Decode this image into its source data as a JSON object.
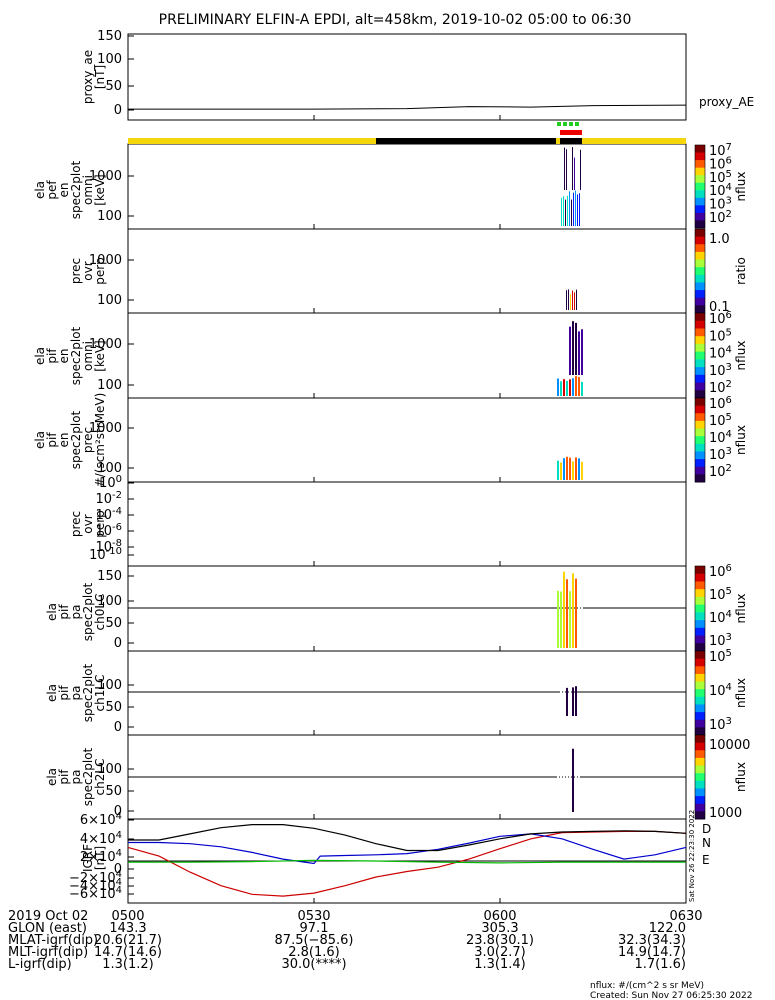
{
  "title": "PRELIMINARY ELFIN-A EPDI, alt=458km, 2019-10-02 05:00 to 06:30",
  "chart_data": [
    {
      "type": "line",
      "ylabel": [
        "proxy_ae",
        "[nT]"
      ],
      "yticks": [
        "150",
        "100",
        "50",
        "0"
      ],
      "ylim": [
        0,
        150
      ],
      "series": [
        {
          "name": "proxy_AE",
          "color": "#000000",
          "x": [
            "05:00",
            "05:15",
            "05:30",
            "05:45",
            "05:55",
            "06:05",
            "06:15",
            "06:30"
          ],
          "values": [
            10,
            10,
            10,
            11,
            15,
            14,
            17,
            18
          ]
        }
      ]
    },
    {
      "type": "heatmap",
      "ylabel": [
        "ela",
        "pef",
        "en",
        "spec2plot",
        "omni",
        "[keV]"
      ],
      "yticks": [
        "1000",
        "100"
      ],
      "colorbar_ticks": [
        "10^7",
        "10^6",
        "10^5",
        "10^4",
        "10^3",
        "10^2"
      ],
      "colorbar_label": "nflux"
    },
    {
      "type": "heatmap",
      "ylabel": [
        "prec",
        "ovr",
        "perp"
      ],
      "yticks": [
        "1000",
        "100"
      ],
      "colorbar_ticks": [
        "1.0",
        "0.1"
      ],
      "colorbar_label": "ratio"
    },
    {
      "type": "heatmap",
      "ylabel": [
        "ela",
        "pif",
        "en",
        "spec2plot",
        "omni",
        "[keV]"
      ],
      "yticks": [
        "1000",
        "100"
      ],
      "colorbar_ticks": [
        "10^6",
        "10^5",
        "10^4",
        "10^3",
        "10^2"
      ],
      "colorbar_label": "nflux"
    },
    {
      "type": "heatmap",
      "ylabel": [
        "ela",
        "pif",
        "en",
        "spec2plot",
        "prec",
        "#/(scm²strMeV)"
      ],
      "yticks": [
        "1000",
        "100"
      ],
      "colorbar_ticks": [
        "10^6",
        "10^5",
        "10^4",
        "10^3",
        "10^2"
      ],
      "colorbar_label": "nflux"
    },
    {
      "type": "heatmap",
      "ylabel": [
        "prec",
        "ovr",
        "perp"
      ],
      "yticks": [
        "10^0",
        "10^-2",
        "10^-4",
        "10^-6",
        "10^-8",
        "10^-10"
      ]
    },
    {
      "type": "heatmap",
      "ylabel": [
        "ela",
        "pif",
        "pa",
        "spec2plot",
        "ch0LC"
      ],
      "yticks": [
        "150",
        "100",
        "50",
        "0"
      ],
      "colorbar_ticks": [
        "10^6",
        "10^5",
        "10^4",
        "10^3"
      ],
      "colorbar_label": "nflux"
    },
    {
      "type": "heatmap",
      "ylabel": [
        "ela",
        "pif",
        "pa",
        "spec2plot",
        "ch1LC"
      ],
      "yticks": [
        "100",
        "50",
        "0"
      ],
      "colorbar_ticks": [
        "10^5",
        "10^4",
        "10^3"
      ],
      "colorbar_label": "nflux"
    },
    {
      "type": "heatmap",
      "ylabel": [
        "ela",
        "pif",
        "pa",
        "spec2plot",
        "ch2LC"
      ],
      "yticks": [
        "100",
        "50",
        "0"
      ],
      "colorbar_ticks": [
        "10000",
        "1000"
      ],
      "colorbar_label": "nflux"
    },
    {
      "type": "line",
      "ylabel": [
        "IGRF",
        "[nT]"
      ],
      "yticks": [
        "6×10^4",
        "4×10^4",
        "2×10^4",
        "0",
        "−2×10^4",
        "−4×10^4",
        "−6×10^4"
      ],
      "ylim": [
        -60000,
        60000
      ],
      "series": [
        {
          "name": "D",
          "color": "#cc0000",
          "x": [
            "05:00",
            "05:05",
            "05:10",
            "05:15",
            "05:20",
            "05:25",
            "05:30",
            "05:35",
            "05:40",
            "05:45",
            "05:50",
            "05:55",
            "06:00",
            "06:05",
            "06:10",
            "06:15",
            "06:20",
            "06:25",
            "06:30"
          ],
          "values": [
            22000,
            8000,
            -18000,
            -40000,
            -54000,
            -57000,
            -52000,
            -40000,
            -26000,
            -17000,
            -10000,
            3000,
            20000,
            36000,
            46000,
            47000,
            48000,
            48000,
            45000
          ]
        },
        {
          "name": "N",
          "color": "#0000cc",
          "x": [
            "05:00",
            "05:05",
            "05:10",
            "05:15",
            "05:20",
            "05:25",
            "05:30",
            "05:31",
            "05:35",
            "05:40",
            "05:45",
            "05:50",
            "05:55",
            "06:00",
            "06:05",
            "06:10",
            "06:15",
            "06:20",
            "06:25",
            "06:30"
          ],
          "values": [
            30000,
            30000,
            28000,
            23000,
            14000,
            3000,
            -4000,
            8000,
            9000,
            10000,
            12000,
            19000,
            29000,
            40000,
            44000,
            36000,
            19000,
            3000,
            10000,
            22000
          ]
        },
        {
          "name": "E",
          "color": "#00bb00",
          "x": [
            "05:00",
            "05:10",
            "05:20",
            "05:30",
            "05:40",
            "05:50",
            "06:00",
            "06:10",
            "06:20",
            "06:30"
          ],
          "values": [
            -2000,
            -2000,
            -1000,
            1000,
            0,
            -2000,
            -3000,
            -2000,
            -2000,
            -2000
          ]
        },
        {
          "name": "",
          "color": "#000000",
          "x": [
            "05:00",
            "05:05",
            "05:10",
            "05:15",
            "05:20",
            "05:25",
            "05:30",
            "05:35",
            "05:40",
            "05:45",
            "05:50",
            "05:55",
            "06:00",
            "06:05",
            "06:10",
            "06:15",
            "06:20",
            "06:25",
            "06:30"
          ],
          "values": [
            34000,
            34000,
            44000,
            54000,
            59000,
            59000,
            53000,
            42000,
            28000,
            17000,
            17000,
            26000,
            36000,
            44000,
            47000,
            48000,
            49000,
            48000,
            45000
          ]
        }
      ]
    }
  ],
  "legend_labels": {
    "proxy_ae": "proxy_AE",
    "D": "D",
    "N": "N",
    "E": "E"
  },
  "colorbar_labels": {
    "nflux": "nflux",
    "ratio": "ratio"
  },
  "timestamp_vertical": "Sat Nov 26 22:23:30 2022",
  "xaxis": {
    "row_labels": [
      "2019 Oct 02",
      "GLON (east)",
      "MLAT-igrf(dip)",
      "MLT-igrf(dip)",
      "L-igrf(dip)"
    ],
    "columns": [
      {
        "time": "0500",
        "values": [
          "143.3",
          "20.6(21.7)",
          "14.7(14.6)",
          "1.3(1.2)"
        ]
      },
      {
        "time": "0530",
        "values": [
          "97.1",
          "87.5(−85.6)",
          "2.8(1.6)",
          "30.0(****)"
        ]
      },
      {
        "time": "0600",
        "values": [
          "305.3",
          "23.8(30.1)",
          "3.0(2.7)",
          "1.3(1.4)"
        ]
      },
      {
        "time": "0630",
        "values": [
          "122.0",
          "32.3(34.3)",
          "14.9(14.7)",
          "1.7(1.6)"
        ]
      }
    ]
  },
  "footer": {
    "units": "nflux: #/(cm^2 s sr MeV)",
    "created": "Created: Sun Nov 27 06:25:30 2022"
  },
  "colors": {
    "status_yellow": "#f5d60a",
    "status_black": "#000000",
    "marker_green": "#22cc22",
    "marker_red": "#ee0000"
  }
}
